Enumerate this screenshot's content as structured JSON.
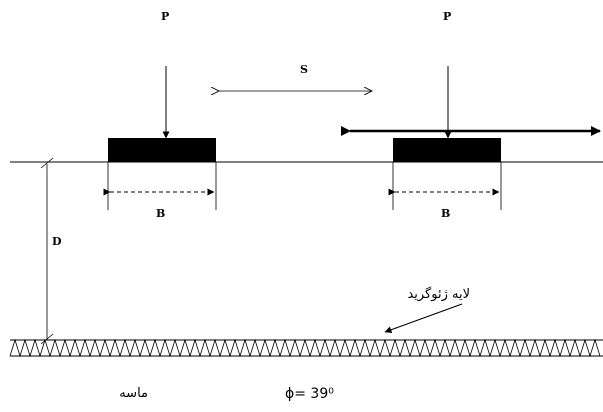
{
  "labels": {
    "load_left": "P",
    "load_right": "P",
    "spacing": "S",
    "width_left": "B",
    "width_right": "B",
    "depth": "D",
    "geogrid_layer": "لایه ژئوگرید",
    "soil": "ماسه",
    "friction_angle": "ϕ= 39⁰"
  },
  "colors": {
    "footing": "#000000",
    "line": "#000000",
    "background": "#ffffff"
  }
}
